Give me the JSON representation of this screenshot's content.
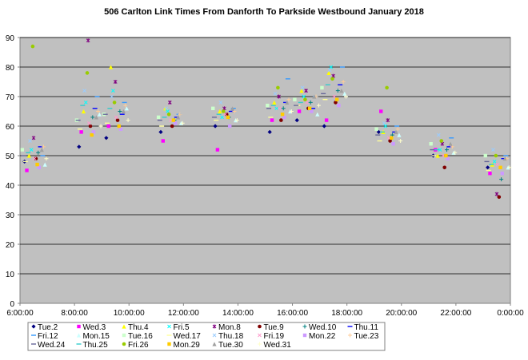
{
  "chart_data": {
    "type": "scatter",
    "title": "506 Carlton Link Times From Danforth To Parkside Westbound January 2018",
    "xlabel": "",
    "ylabel": "",
    "ylim": [
      0,
      90
    ],
    "yticks": [
      "0",
      "10",
      "20",
      "30",
      "40",
      "50",
      "60",
      "70",
      "80",
      "90"
    ],
    "xlim": [
      "6:00:00",
      "0:00:00"
    ],
    "xticks": [
      "6:00:00",
      "8:00:00",
      "10:00:00",
      "12:00:00",
      "14:00:00",
      "16:00:00",
      "18:00:00",
      "20:00:00",
      "22:00:00",
      "0:00:00"
    ],
    "grid": true,
    "plot_background": "#c0c0c0",
    "legend_position": "bottom",
    "series": [
      {
        "name": "Tue.2",
        "marker": "diamond",
        "color": "#000080",
        "x": [
          "6:10",
          "8:10",
          "9:10",
          "11:10",
          "13:10",
          "15:10",
          "16:10",
          "17:10",
          "19:10",
          "21:10",
          "23:10"
        ],
        "y": [
          48,
          53,
          56,
          58,
          60,
          58,
          62,
          60,
          58,
          50,
          46
        ]
      },
      {
        "name": "Wed.3",
        "marker": "square",
        "color": "#ff00ff",
        "x": [
          "6:15",
          "8:15",
          "9:15",
          "11:15",
          "13:15",
          "15:15",
          "16:15",
          "17:15",
          "19:15",
          "21:15",
          "23:15"
        ],
        "y": [
          45,
          58,
          60,
          55,
          52,
          62,
          65,
          62,
          65,
          52,
          44
        ]
      },
      {
        "name": "Thu.4",
        "marker": "triangle",
        "color": "#ffff00",
        "x": [
          "6:20",
          "8:20",
          "9:20",
          "11:20",
          "13:20",
          "15:20",
          "16:20",
          "17:20",
          "19:20",
          "21:20",
          "23:20"
        ],
        "y": [
          50,
          65,
          80,
          66,
          65,
          68,
          72,
          78,
          58,
          50,
          47
        ]
      },
      {
        "name": "Fri.5",
        "marker": "x",
        "color": "#00ffff",
        "x": [
          "6:25",
          "8:25",
          "9:25",
          "11:25",
          "13:25",
          "15:25",
          "16:25",
          "17:25",
          "19:25",
          "21:25",
          "23:25"
        ],
        "y": [
          52,
          68,
          72,
          65,
          63,
          66,
          70,
          80,
          60,
          52,
          48
        ]
      },
      {
        "name": "Mon.8",
        "marker": "star",
        "color": "#800080",
        "x": [
          "6:30",
          "8:30",
          "9:30",
          "11:30",
          "13:30",
          "15:30",
          "16:30",
          "17:30",
          "19:30",
          "21:30",
          "23:30"
        ],
        "y": [
          56,
          89,
          75,
          68,
          66,
          70,
          72,
          77,
          62,
          54,
          37
        ]
      },
      {
        "name": "Tue.9",
        "marker": "circle",
        "color": "#800000",
        "x": [
          "6:35",
          "8:35",
          "9:35",
          "11:35",
          "13:35",
          "15:35",
          "16:35",
          "17:35",
          "19:35",
          "21:35",
          "23:35"
        ],
        "y": [
          49,
          60,
          62,
          60,
          64,
          62,
          66,
          68,
          55,
          46,
          36
        ]
      },
      {
        "name": "Wed.10",
        "marker": "plus",
        "color": "#008080",
        "x": [
          "6:40",
          "8:40",
          "9:40",
          "11:40",
          "13:40",
          "15:40",
          "16:40",
          "17:40",
          "19:40",
          "21:40",
          "23:40"
        ],
        "y": [
          51,
          63,
          65,
          62,
          63,
          66,
          68,
          72,
          57,
          52,
          42
        ]
      },
      {
        "name": "Thu.11",
        "marker": "dash",
        "color": "#0000ff",
        "x": [
          "6:45",
          "8:45",
          "9:45",
          "11:45",
          "13:45",
          "15:45",
          "16:45",
          "17:45",
          "19:45",
          "21:45",
          "23:45"
        ],
        "y": [
          53,
          66,
          64,
          63,
          65,
          68,
          66,
          74,
          58,
          53,
          49
        ]
      },
      {
        "name": "Fri.12",
        "marker": "dash",
        "color": "#3399ff",
        "x": [
          "6:50",
          "8:50",
          "9:50",
          "11:50",
          "13:50",
          "15:50",
          "16:50",
          "17:50",
          "19:50",
          "21:50",
          "23:50"
        ],
        "y": [
          50,
          70,
          68,
          64,
          66,
          76,
          70,
          80,
          60,
          56,
          50
        ]
      },
      {
        "name": "Mon.15",
        "marker": "triangle",
        "color": "#ccffff",
        "x": [
          "6:55",
          "8:55",
          "9:55",
          "11:55",
          "13:55",
          "15:55",
          "16:55",
          "17:55",
          "19:55",
          "21:55",
          "23:55"
        ],
        "y": [
          47,
          64,
          66,
          61,
          62,
          65,
          64,
          71,
          57,
          51,
          46
        ]
      },
      {
        "name": "Tue.16",
        "marker": "square",
        "color": "#ccffcc",
        "x": [
          "6:05",
          "8:05",
          "9:05",
          "11:05",
          "13:05",
          "15:05",
          "16:05",
          "17:05",
          "19:05",
          "21:05",
          "23:05"
        ],
        "y": [
          52,
          62,
          64,
          63,
          66,
          67,
          69,
          73,
          59,
          54,
          50
        ]
      },
      {
        "name": "Wed.17",
        "marker": "dash",
        "color": "#ffff99",
        "x": [
          "6:12",
          "8:12",
          "9:12",
          "11:12",
          "13:12",
          "15:12",
          "16:12",
          "17:12",
          "19:12",
          "21:12",
          "23:12"
        ],
        "y": [
          48,
          59,
          61,
          60,
          62,
          63,
          67,
          69,
          55,
          50,
          45
        ]
      },
      {
        "name": "Thu.18",
        "marker": "x",
        "color": "#99ccff",
        "x": [
          "6:22",
          "8:22",
          "9:22",
          "11:22",
          "13:22",
          "15:22",
          "16:22",
          "17:22",
          "19:22",
          "21:22",
          "23:22"
        ],
        "y": [
          55,
          72,
          70,
          66,
          68,
          71,
          73,
          79,
          61,
          57,
          52
        ]
      },
      {
        "name": "Fri.19",
        "marker": "x",
        "color": "#ff99cc",
        "x": [
          "6:32",
          "8:32",
          "9:32",
          "11:32",
          "13:32",
          "15:32",
          "16:32",
          "17:32",
          "19:32",
          "21:32",
          "23:32"
        ],
        "y": [
          49,
          61,
          63,
          62,
          64,
          66,
          68,
          70,
          56,
          50,
          47
        ]
      },
      {
        "name": "Mon.22",
        "marker": "square",
        "color": "#cc99ff",
        "x": [
          "6:42",
          "8:42",
          "9:42",
          "11:42",
          "13:42",
          "15:42",
          "16:42",
          "17:42",
          "19:42",
          "21:42",
          "23:42"
        ],
        "y": [
          46,
          58,
          59,
          61,
          60,
          63,
          65,
          67,
          54,
          49,
          44
        ]
      },
      {
        "name": "Tue.23",
        "marker": "plus",
        "color": "#ffcc99",
        "x": [
          "6:52",
          "8:52",
          "9:52",
          "11:52",
          "13:52",
          "15:52",
          "16:52",
          "17:52",
          "19:52",
          "21:52",
          "23:52"
        ],
        "y": [
          53,
          65,
          67,
          64,
          65,
          69,
          70,
          75,
          59,
          53,
          49
        ]
      },
      {
        "name": "Wed.24",
        "marker": "dash",
        "color": "#666699",
        "x": [
          "6:08",
          "8:08",
          "9:08",
          "11:08",
          "13:08",
          "15:08",
          "16:08",
          "17:08",
          "19:08",
          "21:08",
          "23:08"
        ],
        "y": [
          50,
          62,
          64,
          62,
          63,
          66,
          67,
          71,
          57,
          52,
          48
        ]
      },
      {
        "name": "Thu.25",
        "marker": "dash",
        "color": "#33cccc",
        "x": [
          "6:18",
          "8:18",
          "9:18",
          "11:18",
          "13:18",
          "15:18",
          "16:18",
          "17:18",
          "19:18",
          "21:18",
          "23:18"
        ],
        "y": [
          51,
          67,
          66,
          63,
          64,
          67,
          68,
          74,
          58,
          52,
          47
        ]
      },
      {
        "name": "Fri.26",
        "marker": "circle",
        "color": "#99cc00",
        "x": [
          "6:28",
          "8:28",
          "9:28",
          "11:28",
          "13:28",
          "15:28",
          "16:28",
          "17:28",
          "19:28",
          "21:28",
          "23:28"
        ],
        "y": [
          87,
          78,
          68,
          64,
          65,
          73,
          69,
          76,
          73,
          55,
          50
        ]
      },
      {
        "name": "Mon.29",
        "marker": "square",
        "color": "#ffcc00",
        "x": [
          "6:38",
          "8:38",
          "9:38",
          "11:38",
          "13:38",
          "15:38",
          "16:38",
          "17:38",
          "19:38",
          "21:38",
          "23:38"
        ],
        "y": [
          47,
          57,
          60,
          62,
          63,
          64,
          66,
          69,
          56,
          50,
          46
        ]
      },
      {
        "name": "Tue.30",
        "marker": "triangle",
        "color": "#a0a0a0",
        "x": [
          "6:48",
          "8:48",
          "9:48",
          "11:48",
          "13:48",
          "15:48",
          "16:48",
          "17:48",
          "19:48",
          "21:48",
          "23:48"
        ],
        "y": [
          52,
          63,
          65,
          63,
          66,
          68,
          70,
          72,
          58,
          54,
          49
        ]
      },
      {
        "name": "Wed.31",
        "marker": "plus",
        "color": "#ffffcc",
        "x": [
          "6:58",
          "8:58",
          "9:58",
          "11:58",
          "13:58",
          "15:58",
          "16:58",
          "17:58",
          "19:58",
          "21:58",
          "23:58"
        ],
        "y": [
          49,
          60,
          62,
          61,
          62,
          65,
          67,
          70,
          55,
          51,
          46
        ]
      }
    ]
  }
}
